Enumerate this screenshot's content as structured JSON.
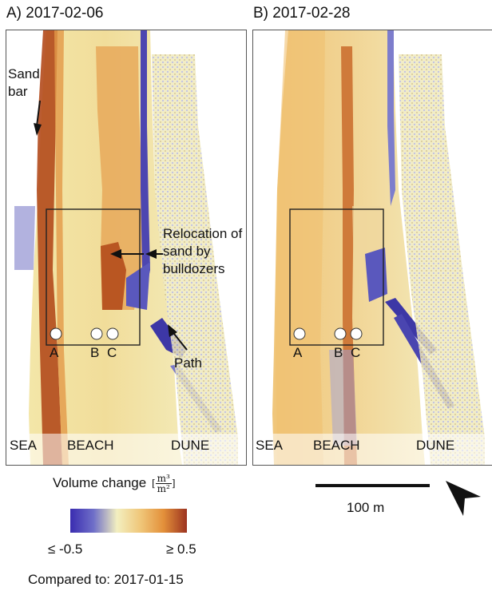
{
  "panels": [
    {
      "title": "A) 2017-02-06"
    },
    {
      "title": "B) 2017-02-28"
    }
  ],
  "zones": {
    "sea": "SEA",
    "beach": "BEACH",
    "dune": "DUNE"
  },
  "points": {
    "a": "A",
    "b": "B",
    "c": "C"
  },
  "annotations": {
    "sand_bar": "Sand bar",
    "relocation": "Relocation of sand by bulldozers",
    "path": "Path"
  },
  "legend": {
    "title": "Volume change",
    "unit_numerator": "m³",
    "unit_denominator": "m²",
    "min_label": "≤ -0.5",
    "max_label": "≥ 0.5",
    "colors": [
      "#3a2cb0",
      "#6f6fc8",
      "#f2efc0",
      "#f0c77a",
      "#e3903a",
      "#9c3320"
    ]
  },
  "reference": "Compared to: 2017-01-15",
  "scale": {
    "label": "100 m"
  },
  "north_arrow_icon": "north-arrow-icon"
}
